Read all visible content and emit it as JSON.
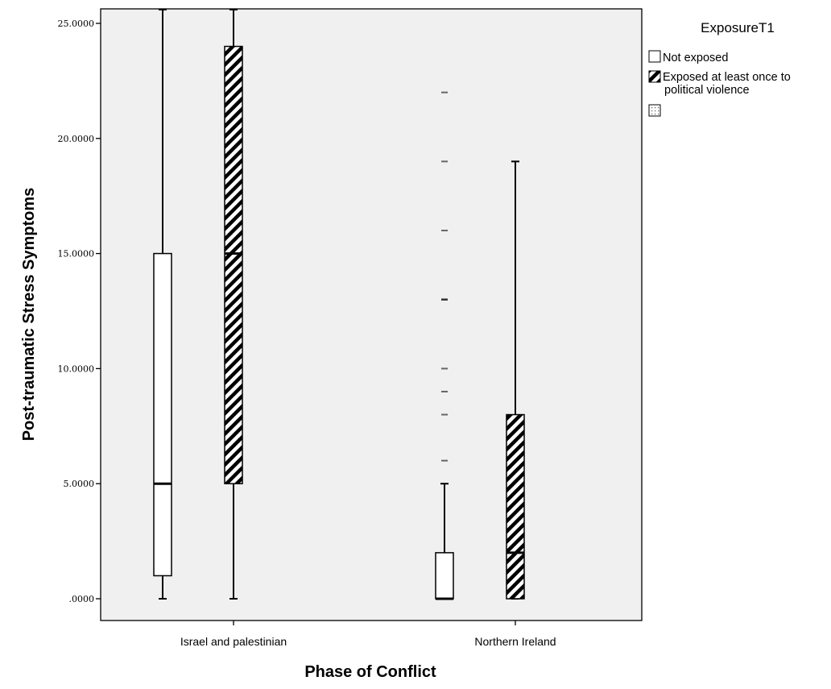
{
  "chart_data": {
    "type": "boxplot",
    "xlabel": "Phase of Conflict",
    "ylabel": "Post-traumatic Stress Symptoms",
    "ylim": [
      -1,
      25.6
    ],
    "yticks": [
      0,
      5,
      10,
      15,
      20,
      25
    ],
    "ytick_labels": [
      ".0000",
      "5.0000",
      "10.0000",
      "15.0000",
      "20.0000",
      "25.0000"
    ],
    "categories": [
      "Israel and palestinian",
      "Northern Ireland"
    ],
    "legend": {
      "title": "ExposureT1",
      "position": "top-right, outside plot",
      "entries": [
        "Not exposed",
        "Exposed at least once to political violence",
        ""
      ]
    },
    "grid": false,
    "series": [
      {
        "name": "Not exposed",
        "pattern": "none",
        "boxes": [
          {
            "category": "Israel and palestinian",
            "whisker_low": 0,
            "q1": 1,
            "median": 5,
            "q3": 15,
            "whisker_high": 25.6,
            "outliers": []
          },
          {
            "category": "Northern Ireland",
            "whisker_low": 0,
            "q1": 0,
            "median": 0,
            "q3": 2,
            "whisker_high": 5,
            "outliers": [
              6,
              8,
              9,
              10,
              13,
              16,
              19,
              22
            ]
          }
        ]
      },
      {
        "name": "Exposed at least once to political violence",
        "pattern": "diagonal-hatch",
        "boxes": [
          {
            "category": "Israel and palestinian",
            "whisker_low": 0,
            "q1": 5,
            "median": 15,
            "q3": 24,
            "whisker_high": 25.6,
            "outliers": []
          },
          {
            "category": "Northern Ireland",
            "whisker_low": 0,
            "q1": 0,
            "median": 2,
            "q3": 8,
            "whisker_high": 19,
            "outliers": []
          }
        ]
      }
    ]
  }
}
